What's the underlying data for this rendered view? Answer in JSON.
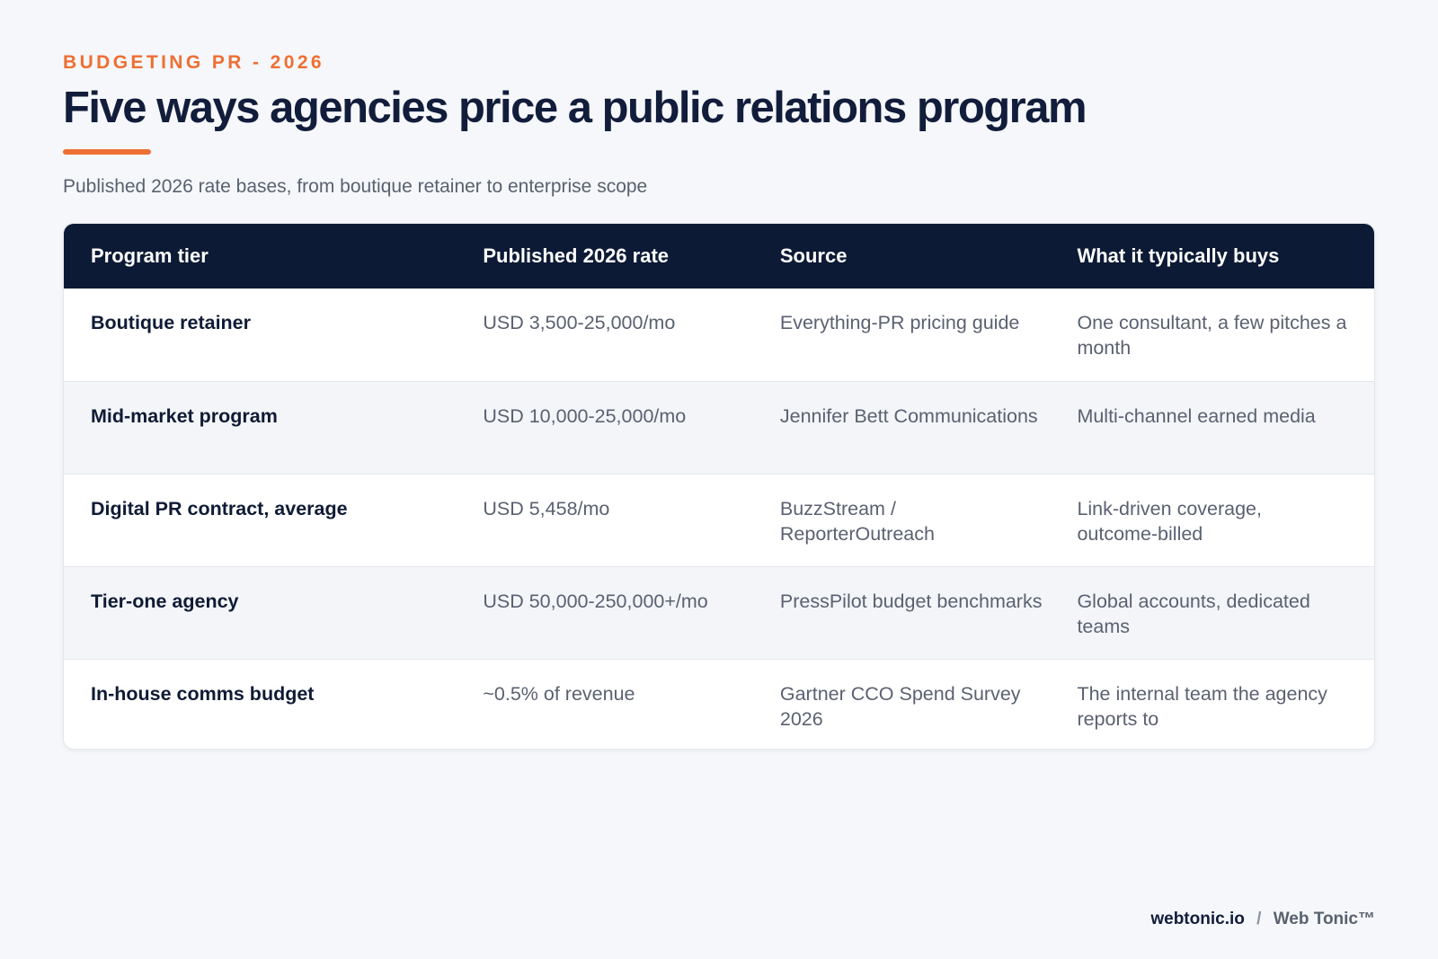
{
  "eyebrow": "BUDGETING PR - 2026",
  "title": "Five ways agencies price a public relations program",
  "subtitle": "Published 2026 rate bases, from boutique retainer to enterprise scope",
  "table": {
    "headers": [
      "Program tier",
      "Published 2026 rate",
      "Source",
      "What it typically buys"
    ],
    "rows": [
      [
        "Boutique retainer",
        "USD 3,500-25,000/mo",
        "Everything-PR pricing guide",
        "One consultant, a few pitches a month"
      ],
      [
        "Mid-market program",
        "USD 10,000-25,000/mo",
        "Jennifer Bett Communications",
        "Multi-channel earned media"
      ],
      [
        "Digital PR contract, average",
        "USD 5,458/mo",
        "BuzzStream / ReporterOutreach",
        "Link-driven coverage, outcome-billed"
      ],
      [
        "Tier-one agency",
        "USD 50,000-250,000+/mo",
        "PressPilot budget benchmarks",
        "Global accounts, dedicated teams"
      ],
      [
        "In-house comms budget",
        "~0.5% of revenue",
        "Gartner CCO Spend Survey 2026",
        "The internal team the agency reports to"
      ]
    ]
  },
  "footer": {
    "domain": "webtonic.io",
    "separator": "/",
    "brand": "Web Tonic™"
  },
  "colors": {
    "accent": "#ee6f34",
    "header_bg": "#0c1a35",
    "page_bg": "#f5f7fa"
  }
}
